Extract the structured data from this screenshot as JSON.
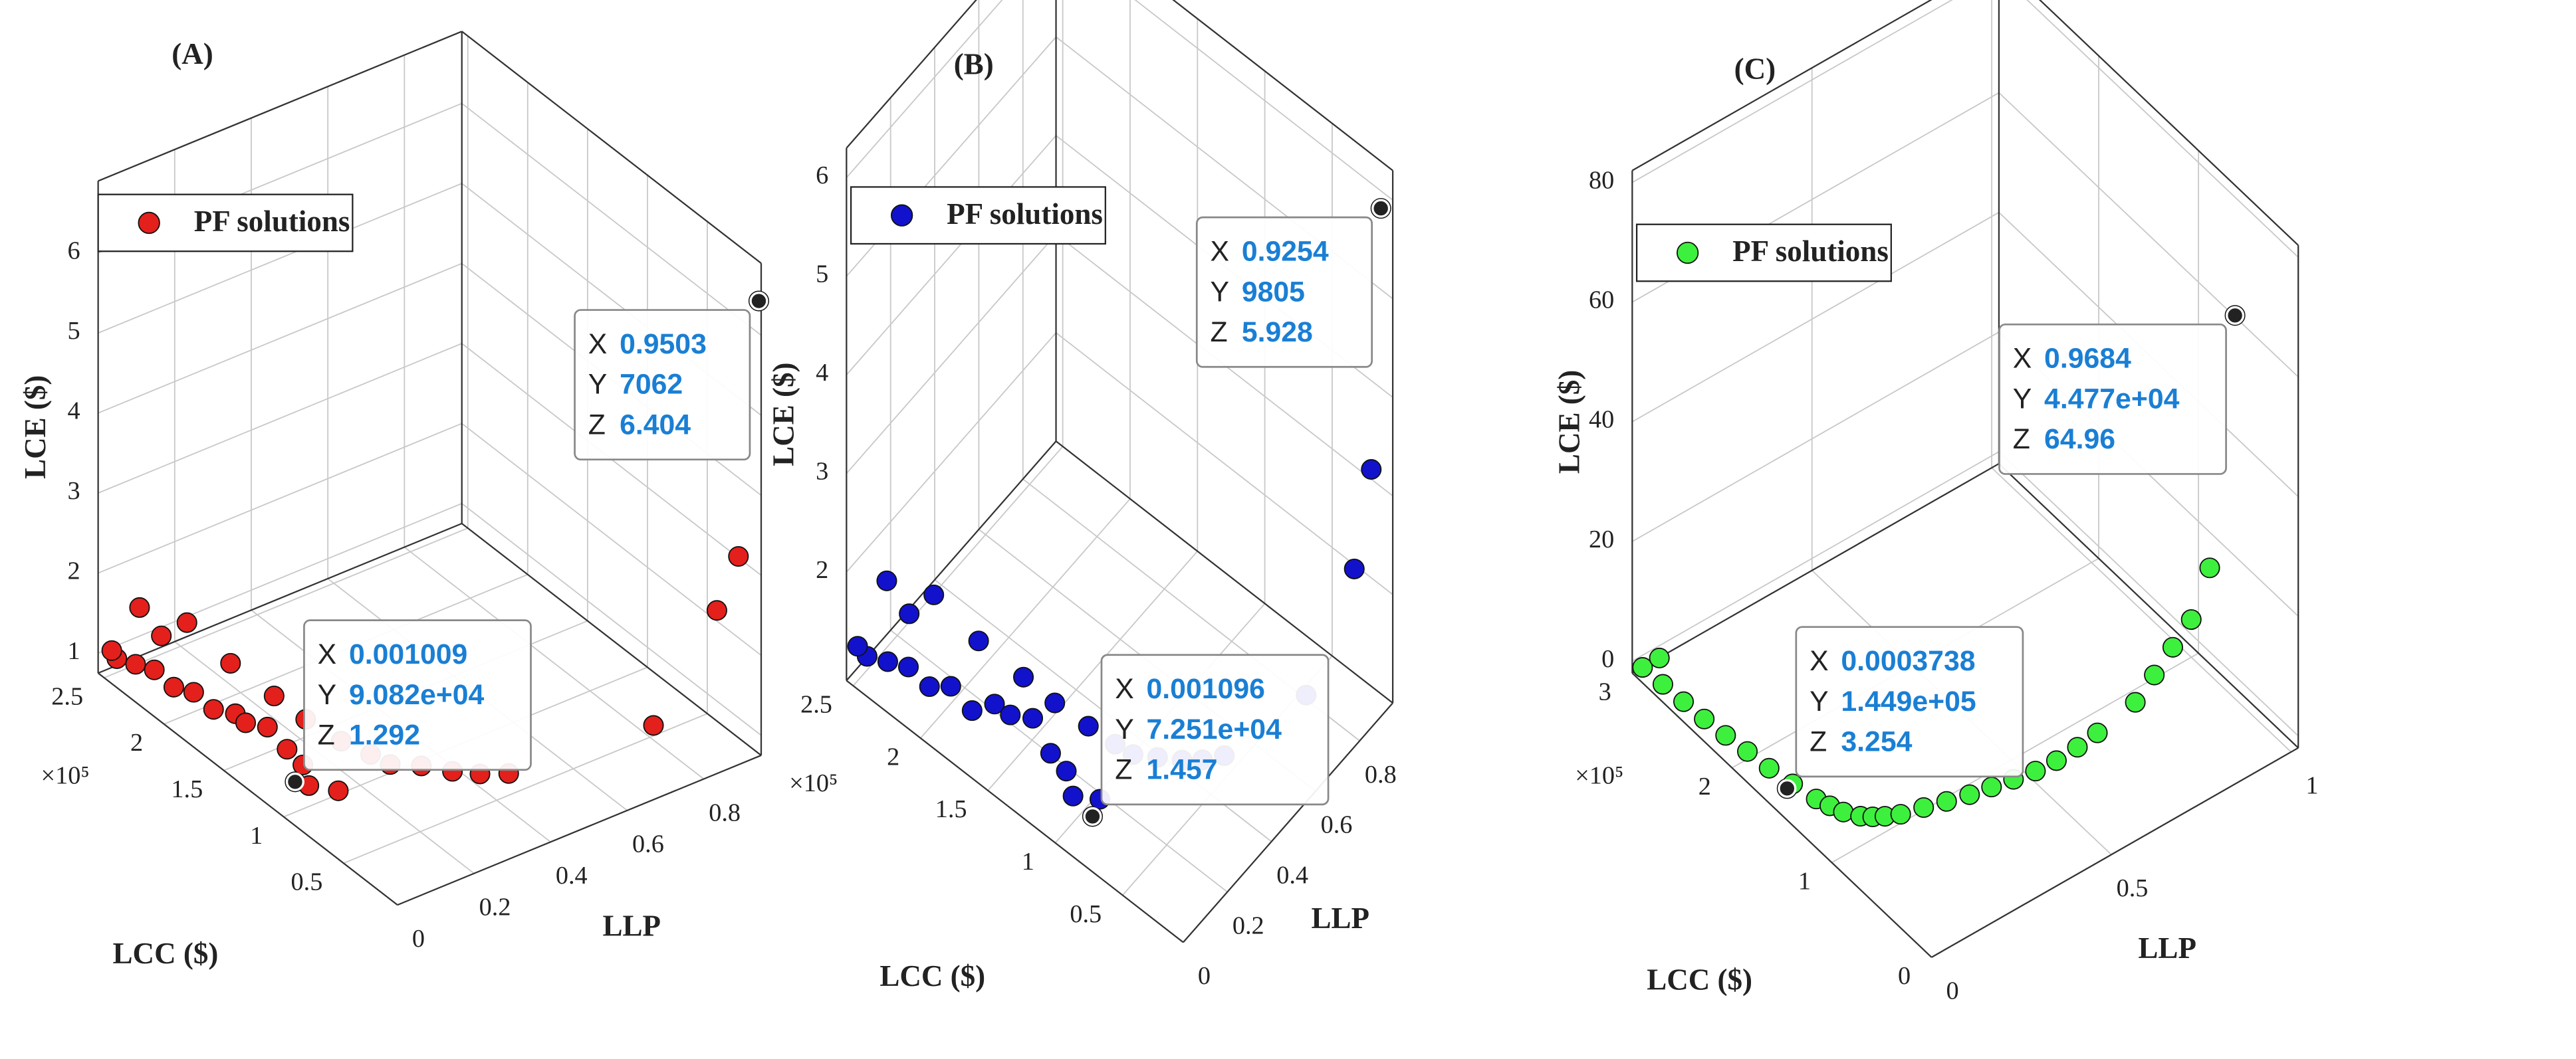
{
  "chart_data": [
    {
      "type": "scatter3d",
      "panel_label": "(A)",
      "xlabel": "LLP",
      "ylabel": "LCC ($)",
      "zlabel": "LCE ($)",
      "y_exponent": "×10⁵",
      "xlim": [
        0,
        0.95
      ],
      "xticks": [
        0,
        0.2,
        0.4,
        0.6,
        0.8
      ],
      "ylim": [
        5000,
        255000
      ],
      "yticks": [
        {
          "value": 50000,
          "label": "0.5"
        },
        {
          "value": 100000,
          "label": "1"
        },
        {
          "value": 150000,
          "label": "1.5"
        },
        {
          "value": 200000,
          "label": "2"
        },
        {
          "value": 250000,
          "label": "2.5"
        }
      ],
      "zlim": [
        0.75,
        6.9
      ],
      "zticks": [
        1,
        2,
        3,
        4,
        5,
        6
      ],
      "grid": true,
      "series": [
        {
          "name": "PF solutions",
          "color": "#e3201b",
          "x": [
            0.001009,
            0.002,
            0.004,
            0.006,
            0.01,
            0.015,
            0.02,
            0.03,
            0.01,
            0.02,
            0.04,
            0.05,
            0.03,
            0.06,
            0.08,
            0.1,
            0.12,
            0.15,
            0.18,
            0.2,
            0.25,
            0.3,
            0.35,
            0.4,
            0.05,
            0.08,
            0.02,
            0.04,
            0.7,
            0.85,
            0.9,
            0.9503
          ],
          "y": [
            90820,
            240000,
            225000,
            210000,
            195000,
            180000,
            165000,
            150000,
            135000,
            120000,
            110000,
            100000,
            230000,
            200000,
            170000,
            140000,
            120000,
            100000,
            85000,
            75000,
            65000,
            55000,
            48000,
            40000,
            95000,
            80000,
            250000,
            215000,
            15000,
            10000,
            8000,
            7062
          ],
          "z": [
            1.292,
            1.1,
            1.2,
            1.3,
            1.25,
            1.35,
            1.3,
            1.4,
            1.5,
            1.6,
            1.4,
            1.3,
            1.8,
            1.9,
            1.7,
            1.6,
            1.5,
            1.4,
            1.35,
            1.3,
            1.3,
            1.25,
            1.2,
            1.2,
            1.1,
            1.15,
            1.05,
            1.6,
            1.5,
            2.7,
            3.3,
            6.404
          ]
        }
      ],
      "datatips": [
        {
          "fields": [
            {
              "name": "X",
              "value": 0.9503
            },
            {
              "name": "Y",
              "value": 7062
            },
            {
              "name": "Z",
              "value": 6.404
            }
          ]
        },
        {
          "fields": [
            {
              "name": "X",
              "value": 0.001009
            },
            {
              "name": "Y",
              "value": 90820,
              "value_label": "9.082e+04"
            },
            {
              "name": "Z",
              "value": 1.292
            }
          ]
        }
      ]
    },
    {
      "type": "scatter3d",
      "panel_label": "(B)",
      "xlabel": "LLP",
      "ylabel": "LCC ($)",
      "zlabel": "LCE ($)",
      "y_exponent": "×10⁵",
      "xlim": [
        0,
        0.95
      ],
      "xticks": [
        0,
        0.2,
        0.4,
        0.6,
        0.8
      ],
      "ylim": [
        5000,
        255000
      ],
      "yticks": [
        {
          "value": 50000,
          "label": "0.5"
        },
        {
          "value": 100000,
          "label": "1"
        },
        {
          "value": 150000,
          "label": "1.5"
        },
        {
          "value": 200000,
          "label": "2"
        },
        {
          "value": 250000,
          "label": "2.5"
        }
      ],
      "zlim": [
        0.9,
        6.3
      ],
      "zticks": [
        2,
        3,
        4,
        5,
        6
      ],
      "grid": true,
      "series": [
        {
          "name": "PF solutions",
          "color": "#1212cc",
          "x": [
            0.001096,
            0.002,
            0.004,
            0.006,
            0.01,
            0.015,
            0.02,
            0.03,
            0.01,
            0.02,
            0.04,
            0.05,
            0.03,
            0.06,
            0.08,
            0.1,
            0.12,
            0.15,
            0.18,
            0.2,
            0.25,
            0.3,
            0.35,
            0.4,
            0.05,
            0.08,
            0.02,
            0.04,
            0.6,
            0.8,
            0.88,
            0.9254
          ],
          "y": [
            72510,
            240000,
            225000,
            210000,
            195000,
            180000,
            165000,
            150000,
            135000,
            120000,
            110000,
            100000,
            230000,
            200000,
            170000,
            140000,
            120000,
            100000,
            85000,
            75000,
            65000,
            55000,
            48000,
            40000,
            95000,
            80000,
            250000,
            215000,
            12000,
            9000,
            9500,
            9805
          ],
          "z": [
            1.457,
            1.3,
            1.4,
            1.5,
            1.45,
            1.6,
            1.5,
            1.7,
            1.8,
            1.9,
            1.6,
            1.5,
            2.1,
            2.2,
            2.0,
            1.9,
            1.8,
            1.7,
            1.6,
            1.55,
            1.5,
            1.45,
            1.4,
            1.4,
            1.3,
            1.35,
            1.25,
            1.9,
            1.8,
            2.6,
            3.4,
            5.928
          ]
        }
      ],
      "datatips": [
        {
          "fields": [
            {
              "name": "X",
              "value": 0.9254
            },
            {
              "name": "Y",
              "value": 9805
            },
            {
              "name": "Z",
              "value": 5.928
            }
          ]
        },
        {
          "fields": [
            {
              "name": "X",
              "value": 0.001096
            },
            {
              "name": "Y",
              "value": 72510,
              "value_label": "7.251e+04"
            },
            {
              "name": "Z",
              "value": 1.457
            }
          ]
        }
      ]
    },
    {
      "type": "scatter3d",
      "panel_label": "(C)",
      "xlabel": "LLP",
      "ylabel": "LCC ($)",
      "zlabel": "LCE ($)",
      "y_exponent": "×10⁵",
      "xlim": [
        0,
        1.02
      ],
      "xticks": [
        0,
        {
          "value": 0.5,
          "label": "0.5"
        },
        1
      ],
      "ylim": [
        0,
        300000
      ],
      "yticks": [
        0,
        {
          "value": 100000,
          "label": "1"
        },
        {
          "value": 200000,
          "label": "2"
        },
        {
          "value": 300000,
          "label": "3"
        }
      ],
      "zlim": [
        -2,
        82
      ],
      "zticks": [
        0,
        20,
        40,
        60,
        80
      ],
      "grid": true,
      "series": [
        {
          "name": "PF solutions",
          "color": "#3ef03e",
          "x": [
            0.0003738,
            0.001,
            0.002,
            0.004,
            0.006,
            0.01,
            0.015,
            0.02,
            0.03,
            0.04,
            0.05,
            0.06,
            0.08,
            0.1,
            0.12,
            0.15,
            0.2,
            0.25,
            0.3,
            0.35,
            0.4,
            0.45,
            0.5,
            0.55,
            0.6,
            0.7,
            0.75,
            0.8,
            0.85,
            0.9,
            0.02,
            0.9684
          ],
          "y": [
            144900,
            290000,
            270000,
            250000,
            230000,
            210000,
            190000,
            170000,
            150000,
            130000,
            120000,
            110000,
            100000,
            95000,
            90000,
            85000,
            80000,
            75000,
            70000,
            66000,
            62000,
            58000,
            55000,
            52000,
            50000,
            48000,
            47000,
            46500,
            46000,
            45500,
            280000,
            44770
          ],
          "z": [
            3.254,
            0.5,
            0.8,
            1,
            1.2,
            1.5,
            1.8,
            2,
            2.2,
            2.5,
            2.6,
            2.8,
            3,
            3,
            3.2,
            3.3,
            3.5,
            3.6,
            3.8,
            4,
            4.2,
            4.5,
            5,
            6,
            7,
            9,
            12,
            15,
            18,
            25,
            3,
            64.96
          ]
        }
      ],
      "datatips": [
        {
          "fields": [
            {
              "name": "X",
              "value": 0.9684
            },
            {
              "name": "Y",
              "value": 44770,
              "value_label": "4.477e+04"
            },
            {
              "name": "Z",
              "value": 64.96
            }
          ]
        },
        {
          "fields": [
            {
              "name": "X",
              "value": 0.0003738
            },
            {
              "name": "Y",
              "value": 144900,
              "value_label": "1.449e+05"
            },
            {
              "name": "Z",
              "value": 3.254
            }
          ]
        }
      ]
    }
  ]
}
